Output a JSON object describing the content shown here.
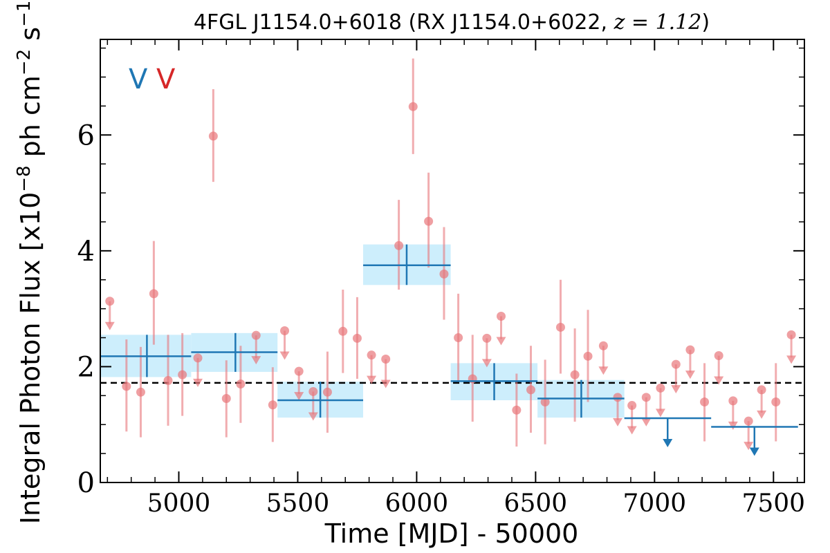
{
  "chart_data": {
    "type": "scatter",
    "title_main": "4FGL J1154.0+6018 (RX J1154.0+6022, ",
    "title_z": "z = 1.12",
    "title_close": ")",
    "xlabel": "Time [MJD] - 50000",
    "ylabel_prefix": "Integral Photon Flux [x10",
    "ylabel_exp1": "−8",
    "ylabel_mid": " ph cm",
    "ylabel_exp2": "−2",
    "ylabel_mid2": " s",
    "ylabel_exp3": "−1",
    "ylabel_close": "]",
    "xlim": [
      4670,
      7630
    ],
    "ylim": [
      0,
      7.65
    ],
    "xticks": [
      5000,
      5500,
      6000,
      6500,
      7000,
      7500
    ],
    "yticks": [
      0,
      2,
      4,
      6
    ],
    "grid": false,
    "mean_flux": 1.72,
    "legend_marks": [
      {
        "text": "V",
        "color": "#1f77b4"
      },
      {
        "text": "V",
        "color": "#d62728"
      }
    ],
    "series": [
      {
        "name": "",
        "color": "#1f77b4",
        "band_color": "#cdeefc",
        "points": [
          {
            "x": 4866,
            "y": 2.18,
            "xlo": 4670,
            "xhi": 5052,
            "ylo": 1.82,
            "yhi": 2.55
          },
          {
            "x": 5238,
            "y": 2.25,
            "xlo": 5052,
            "xhi": 5415,
            "ylo": 1.91,
            "yhi": 2.58
          },
          {
            "x": 5595,
            "y": 1.42,
            "xlo": 5415,
            "xhi": 5775,
            "ylo": 1.12,
            "yhi": 1.74
          },
          {
            "x": 5958,
            "y": 3.75,
            "xlo": 5775,
            "xhi": 6143,
            "ylo": 3.41,
            "yhi": 4.11
          },
          {
            "x": 6326,
            "y": 1.75,
            "xlo": 6143,
            "xhi": 6508,
            "ylo": 1.42,
            "yhi": 2.06
          },
          {
            "x": 6692,
            "y": 1.45,
            "xlo": 6508,
            "xhi": 6873,
            "ylo": 1.12,
            "yhi": 1.77
          }
        ],
        "upper_limits": [
          {
            "x": 7055,
            "y": 1.11,
            "xlo": 6873,
            "xhi": 7238
          },
          {
            "x": 7420,
            "y": 0.96,
            "xlo": 7238,
            "xhi": 7603
          }
        ]
      },
      {
        "name": "",
        "color": "#e8767b",
        "points": [
          {
            "x": 4780,
            "y": 1.66,
            "ylo": 0.88,
            "yhi": 2.47
          },
          {
            "x": 4840,
            "y": 1.56,
            "ylo": 0.78,
            "yhi": 2.34
          },
          {
            "x": 4895,
            "y": 3.26,
            "ylo": 2.38,
            "yhi": 4.17
          },
          {
            "x": 4955,
            "y": 1.76,
            "ylo": 0.98,
            "yhi": 2.55
          },
          {
            "x": 5015,
            "y": 1.86,
            "ylo": 1.15,
            "yhi": 2.58
          },
          {
            "x": 5145,
            "y": 5.98,
            "ylo": 5.19,
            "yhi": 6.79
          },
          {
            "x": 5200,
            "y": 1.45,
            "ylo": 0.78,
            "yhi": 2.11
          },
          {
            "x": 5260,
            "y": 1.7,
            "ylo": 1.03,
            "yhi": 2.36
          },
          {
            "x": 5395,
            "y": 1.34,
            "ylo": 0.7,
            "yhi": 1.99
          },
          {
            "x": 5625,
            "y": 1.56,
            "ylo": 0.86,
            "yhi": 2.26
          },
          {
            "x": 5690,
            "y": 2.61,
            "ylo": 1.89,
            "yhi": 3.33
          },
          {
            "x": 5750,
            "y": 2.49,
            "ylo": 1.79,
            "yhi": 3.2
          },
          {
            "x": 5925,
            "y": 4.09,
            "ylo": 3.33,
            "yhi": 4.88
          },
          {
            "x": 5985,
            "y": 6.49,
            "ylo": 5.67,
            "yhi": 7.32
          },
          {
            "x": 6050,
            "y": 4.51,
            "ylo": 3.71,
            "yhi": 5.35
          },
          {
            "x": 6115,
            "y": 3.6,
            "ylo": 2.81,
            "yhi": 4.41
          },
          {
            "x": 6175,
            "y": 2.5,
            "ylo": 1.74,
            "yhi": 3.26
          },
          {
            "x": 6235,
            "y": 1.79,
            "ylo": 1.05,
            "yhi": 2.55
          },
          {
            "x": 6420,
            "y": 1.25,
            "ylo": 0.62,
            "yhi": 1.88
          },
          {
            "x": 6480,
            "y": 1.6,
            "ylo": 0.86,
            "yhi": 2.36
          },
          {
            "x": 6540,
            "y": 1.39,
            "ylo": 0.66,
            "yhi": 2.12
          },
          {
            "x": 6605,
            "y": 2.68,
            "ylo": 1.88,
            "yhi": 3.5
          },
          {
            "x": 6665,
            "y": 1.86,
            "ylo": 1.05,
            "yhi": 2.66
          },
          {
            "x": 6720,
            "y": 2.18,
            "ylo": 1.39,
            "yhi": 2.98
          },
          {
            "x": 7210,
            "y": 1.39,
            "ylo": 0.71,
            "yhi": 2.06
          },
          {
            "x": 7510,
            "y": 1.39,
            "ylo": 0.71,
            "yhi": 2.06
          }
        ],
        "upper_limits": [
          {
            "x": 4710,
            "y": 3.13
          },
          {
            "x": 5080,
            "y": 2.15
          },
          {
            "x": 5325,
            "y": 2.54
          },
          {
            "x": 5445,
            "y": 2.62
          },
          {
            "x": 5505,
            "y": 1.92
          },
          {
            "x": 5565,
            "y": 1.57
          },
          {
            "x": 5810,
            "y": 2.2
          },
          {
            "x": 5870,
            "y": 2.13
          },
          {
            "x": 6295,
            "y": 2.49
          },
          {
            "x": 6355,
            "y": 2.87
          },
          {
            "x": 6785,
            "y": 2.36
          },
          {
            "x": 6845,
            "y": 1.47
          },
          {
            "x": 6905,
            "y": 1.33
          },
          {
            "x": 6965,
            "y": 1.47
          },
          {
            "x": 7025,
            "y": 1.63
          },
          {
            "x": 7090,
            "y": 2.04
          },
          {
            "x": 7150,
            "y": 2.29
          },
          {
            "x": 7270,
            "y": 2.19
          },
          {
            "x": 7330,
            "y": 1.41
          },
          {
            "x": 7395,
            "y": 1.06
          },
          {
            "x": 7450,
            "y": 1.6
          },
          {
            "x": 7575,
            "y": 2.55
          }
        ]
      }
    ]
  }
}
